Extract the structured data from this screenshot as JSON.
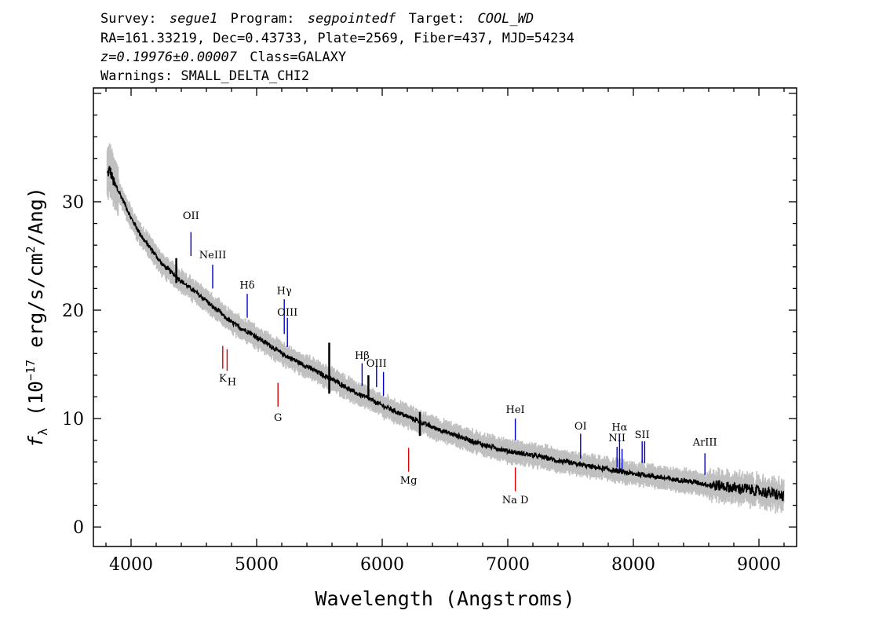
{
  "header": {
    "line1": {
      "survey_label": "Survey:",
      "survey": "segue1",
      "program_label": "Program:",
      "program": "segpointedf",
      "target_label": "Target:",
      "target": "COOL_WD"
    },
    "line2": "RA=161.33219, Dec=0.43733, Plate=2569, Fiber=437, MJD=54234",
    "line3": {
      "z": "z=0.19976±0.00007",
      "class": "Class=GALAXY"
    },
    "line4": "Warnings: SMALL_DELTA_CHI2"
  },
  "chart_data": {
    "type": "line",
    "title": "",
    "xlabel": "Wavelength (Angstroms)",
    "ylabel_parts": {
      "prefix": "f",
      "sub": "λ",
      "units_pre": " (10",
      "exp": "−17",
      "units_mid": " erg/s/cm",
      "exp2": "2",
      "units_post": "/Ang)"
    },
    "xlim": [
      3700,
      9300
    ],
    "ylim": [
      -1.8,
      40.5
    ],
    "xticks": [
      4000,
      5000,
      6000,
      7000,
      8000,
      9000
    ],
    "xtick_labels": [
      "4000",
      "5000",
      "6000",
      "7000",
      "8000",
      "9000"
    ],
    "yticks": [
      0,
      10,
      20,
      30
    ],
    "ytick_labels": [
      "0",
      "10",
      "20",
      "30"
    ],
    "grid": false,
    "series": [
      {
        "color": "#000000",
        "x": [
          3810,
          3830,
          3850,
          3870,
          3900,
          3950,
          4000,
          4050,
          4100,
          4150,
          4200,
          4250,
          4300,
          4350,
          4400,
          4450,
          4500,
          4550,
          4600,
          4650,
          4700,
          4750,
          4800,
          4850,
          4900,
          4950,
          5000,
          5100,
          5200,
          5300,
          5400,
          5500,
          5600,
          5700,
          5800,
          5900,
          6000,
          6100,
          6200,
          6300,
          6400,
          6500,
          6600,
          6700,
          6800,
          6900,
          7000,
          7100,
          7200,
          7300,
          7400,
          7500,
          7600,
          7700,
          7800,
          7900,
          8000,
          8100,
          8200,
          8300,
          8400,
          8500,
          8600,
          8700,
          8800,
          8900,
          9000,
          9100,
          9200
        ],
        "y": [
          32.5,
          33.0,
          32.2,
          31.5,
          31.0,
          29.8,
          28.5,
          27.5,
          26.5,
          25.8,
          25.0,
          24.2,
          23.7,
          23.2,
          22.7,
          22.2,
          21.8,
          21.3,
          20.9,
          20.3,
          19.9,
          19.3,
          18.9,
          18.5,
          18.2,
          17.9,
          17.5,
          16.8,
          16.0,
          15.4,
          14.8,
          14.2,
          13.6,
          13.0,
          12.3,
          11.8,
          11.2,
          10.7,
          10.2,
          9.7,
          9.2,
          8.8,
          8.4,
          8.0,
          7.6,
          7.3,
          7.0,
          6.8,
          6.6,
          6.4,
          6.1,
          5.9,
          5.7,
          5.5,
          5.3,
          5.1,
          4.9,
          4.8,
          4.6,
          4.4,
          4.3,
          4.1,
          3.9,
          3.8,
          3.6,
          3.5,
          3.3,
          3.1,
          2.8
        ]
      },
      {
        "color": "#c0c0c0",
        "note_type": "error band"
      }
    ],
    "annotations": [
      {
        "label": "OII",
        "x": 4477,
        "y_top": 25.0,
        "y_bot": 27.2,
        "label_y": 28.4,
        "color": "#0000cc",
        "label_above": true
      },
      {
        "label": "NeIII",
        "x": 4650,
        "y_top": 22.0,
        "y_bot": 24.2,
        "label_y": 24.8,
        "color": "#0000cc",
        "label_above": true
      },
      {
        "label": "Hδ",
        "x": 4925,
        "y_top": 19.3,
        "y_bot": 21.5,
        "label_y": 22.0,
        "color": "#0000cc",
        "label_above": true
      },
      {
        "label": "Hγ",
        "x": 5220,
        "y_top": 17.8,
        "y_bot": 21.0,
        "label_y": 21.5,
        "color": "#0000cc",
        "label_above": true
      },
      {
        "label": "OIII",
        "x": 5245,
        "y_top": 16.6,
        "y_bot": 19.3,
        "label_y": 19.5,
        "color": "#0000cc",
        "label_above": true
      },
      {
        "label": "Hβ",
        "x": 5840,
        "y_top": 13.0,
        "y_bot": 15.1,
        "label_y": 15.5,
        "color": "#0000cc",
        "label_above": true
      },
      {
        "label": "OIII",
        "x": 5955,
        "y_top": 12.9,
        "y_bot": 14.9,
        "label_y": 14.8,
        "color": "#0000cc",
        "label_above": true
      },
      {
        "label": "OIII",
        "x": 6010,
        "y_top": 12.1,
        "y_bot": 14.3,
        "label_y": 14.8,
        "color": "#0000cc",
        "label_above": false
      },
      {
        "label": "HeI",
        "x": 7060,
        "y_top": 8.0,
        "y_bot": 10.0,
        "label_y": 10.5,
        "color": "#0000cc",
        "label_above": true
      },
      {
        "label": "OI",
        "x": 7580,
        "y_top": 6.3,
        "y_bot": 8.6,
        "label_y": 9.0,
        "color": "#0000cc",
        "label_above": true
      },
      {
        "label": "NII",
        "x": 7870,
        "y_top": 5.5,
        "y_bot": 7.4,
        "label_y": 7.9,
        "color": "#0000cc",
        "label_above": true
      },
      {
        "label": "Hα",
        "x": 7890,
        "y_top": 5.3,
        "y_bot": 8.5,
        "label_y": 8.9,
        "color": "#0000cc",
        "label_above": true
      },
      {
        "label": "NII",
        "x": 7910,
        "y_top": 5.3,
        "y_bot": 7.2,
        "label_y": 7.9,
        "color": "#0000cc",
        "label_above": false
      },
      {
        "label": "SII",
        "x": 8070,
        "y_top": 5.9,
        "y_bot": 7.9,
        "label_y": 8.2,
        "color": "#0000cc",
        "label_above": true
      },
      {
        "label": "SII",
        "x": 8090,
        "y_top": 5.9,
        "y_bot": 7.9,
        "label_y": 8.2,
        "color": "#0000cc",
        "label_above": false
      },
      {
        "label": "ArIII",
        "x": 8570,
        "y_top": 4.8,
        "y_bot": 6.8,
        "label_y": 7.5,
        "color": "#0000cc",
        "label_above": true
      },
      {
        "label": "K",
        "x": 4730,
        "y_top": 14.6,
        "y_bot": 16.7,
        "label_y": 13.4,
        "color": "#dd0000",
        "label_above": false
      },
      {
        "label": "H",
        "x": 4765,
        "y_top": 14.4,
        "y_bot": 16.4,
        "label_y": 13.1,
        "color": "#dd0000",
        "label_above": false
      },
      {
        "label": "G",
        "x": 5170,
        "y_top": 11.1,
        "y_bot": 13.3,
        "label_y": 9.8,
        "color": "#dd0000",
        "label_above": false
      },
      {
        "label": "Mg",
        "x": 6210,
        "y_top": 5.1,
        "y_bot": 7.3,
        "label_y": 4.0,
        "color": "#dd0000",
        "label_above": false
      },
      {
        "label": "Na D",
        "x": 7060,
        "y_top": 3.3,
        "y_bot": 5.5,
        "label_y": 2.2,
        "color": "#dd0000",
        "label_above": false
      }
    ]
  }
}
